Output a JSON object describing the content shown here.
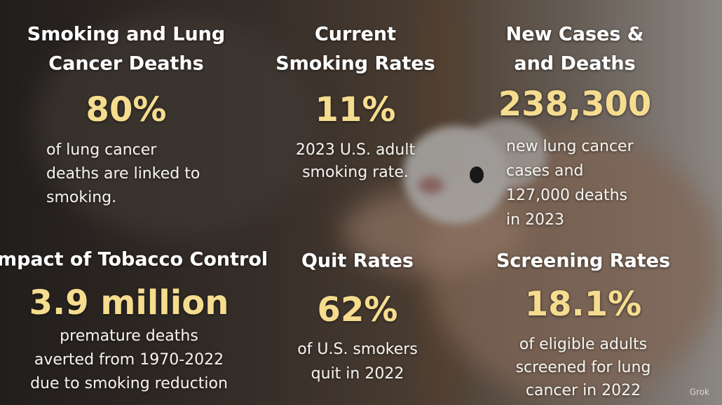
{
  "stats": [
    {
      "title": [
        "Smoking and Lung",
        "Cancer Deaths"
      ],
      "value": "80%",
      "description": [
        "of lung cancer",
        "deaths are linked to",
        "smoking."
      ]
    },
    {
      "title": [
        "Current",
        "Smoking Rates"
      ],
      "value": "11%",
      "description": [
        "2023 U.S. adult",
        "smoking rate."
      ]
    },
    {
      "title": [
        "New Cases &",
        "and Deaths"
      ],
      "value": "238,300",
      "description": [
        "new lung cancer",
        "cases and",
        "127,000 deaths",
        "in 2023"
      ]
    },
    {
      "title": [
        "Impact of Tobacco Control"
      ],
      "value": "3.9 million",
      "description": [
        "premature deaths",
        "averted from 1970-2022",
        "due to smoking reduction"
      ]
    },
    {
      "title": [
        "Quit Rates"
      ],
      "value": "62%",
      "description": [
        "of U.S. smokers",
        "quit in 2022"
      ]
    },
    {
      "title": [
        "Screening Rates"
      ],
      "value": "18.1%",
      "description": [
        "of eligible adults",
        "screened for lung",
        "cancer in 2022"
      ]
    }
  ],
  "watermark": "Grok"
}
